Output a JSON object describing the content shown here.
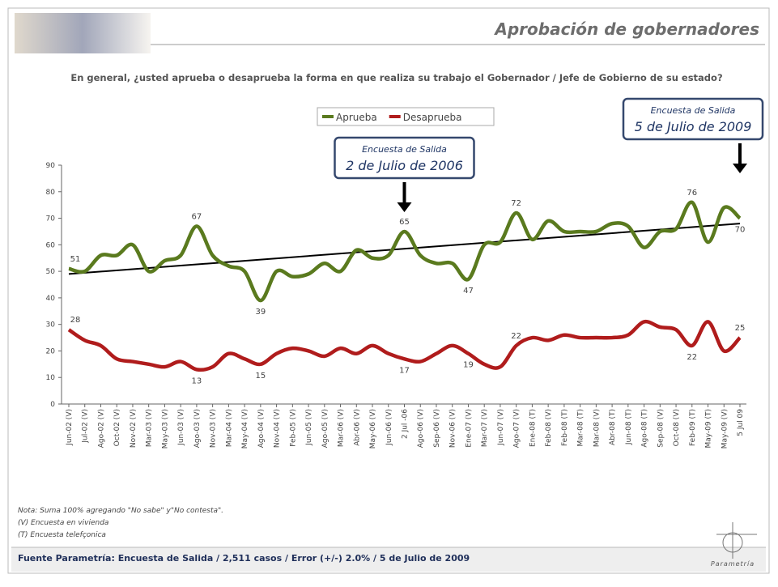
{
  "header": {
    "title": "Aprobación de gobernadores"
  },
  "chart_data": {
    "type": "line",
    "subtitle": "En general, ¿usted aprueba o desaprueba la forma en que realiza su trabajo el Gobernador / Jefe de Gobierno de su estado?",
    "categories": [
      "Jun-02 (V)",
      "Jul-02 (V)",
      "Ago-02 (V)",
      "Oct-02 (V)",
      "Nov-02 (V)",
      "Mar-03 (V)",
      "May-03 (V)",
      "Jun-03 (V)",
      "Ago-03 (V)",
      "Nov-03 (V)",
      "Mar-04 (V)",
      "May-04 (V)",
      "Ago-04 (V)",
      "Nov-04 (V)",
      "Feb-05 (V)",
      "Jun-05 (V)",
      "Ago-05 (V)",
      "Mar-06 (V)",
      "Abr-06 (V)",
      "May-06 (V)",
      "Jun-06 (V)",
      "2 Jul -06",
      "Ago-06 (V)",
      "Sep-06 (V)",
      "Nov-06 (V)",
      "Ene-07 (V)",
      "Mar-07 (V)",
      "Jun-07 (V)",
      "Ago-07 (V)",
      "Ene-08 (T)",
      "Feb-08 (V)",
      "Feb-08 (T)",
      "Mar-08 (T)",
      "Mar-08 (V)",
      "Abr-08 (T)",
      "Jun-08 (T)",
      "Ago-08 (T)",
      "Sep-08 (V)",
      "Oct-08 (V)",
      "Feb-09 (T)",
      "May-09 (T)",
      "May-09 (V)",
      "5 Jul 09"
    ],
    "series": [
      {
        "name": "Aprueba",
        "color": "#5a7a1e",
        "values": [
          51,
          50,
          56,
          56,
          60,
          50,
          54,
          56,
          67,
          56,
          52,
          50,
          39,
          50,
          48,
          49,
          53,
          50,
          58,
          55,
          56,
          65,
          56,
          53,
          53,
          47,
          60,
          61,
          72,
          62,
          69,
          65,
          65,
          65,
          68,
          67,
          59,
          65,
          66,
          76,
          61,
          74,
          70
        ],
        "value_labels": [
          "51",
          null,
          null,
          null,
          null,
          null,
          null,
          null,
          "67",
          null,
          null,
          null,
          "39",
          null,
          null,
          null,
          null,
          null,
          null,
          null,
          null,
          "65",
          null,
          null,
          null,
          "47",
          null,
          null,
          "72",
          null,
          null,
          null,
          null,
          null,
          null,
          null,
          null,
          null,
          null,
          "76",
          null,
          null,
          "70"
        ]
      },
      {
        "name": "Desaprueba",
        "color": "#b01c1c",
        "values": [
          28,
          24,
          22,
          17,
          16,
          15,
          14,
          16,
          13,
          14,
          19,
          17,
          15,
          19,
          21,
          20,
          18,
          21,
          19,
          22,
          19,
          17,
          16,
          19,
          22,
          19,
          15,
          14,
          22,
          25,
          24,
          26,
          25,
          25,
          25,
          26,
          31,
          29,
          28,
          22,
          31,
          20,
          25
        ],
        "value_labels": [
          "28",
          null,
          null,
          null,
          null,
          null,
          null,
          null,
          "13",
          null,
          null,
          null,
          "15",
          null,
          null,
          null,
          null,
          null,
          null,
          null,
          null,
          "17",
          null,
          null,
          null,
          "19",
          null,
          null,
          "22",
          null,
          null,
          null,
          null,
          null,
          null,
          null,
          null,
          null,
          null,
          "22",
          null,
          null,
          "25"
        ]
      }
    ],
    "trend": {
      "values": [
        49,
        68
      ],
      "color": "#000000"
    },
    "ylim": [
      0,
      90
    ],
    "yticks": [
      0,
      10,
      20,
      30,
      40,
      50,
      60,
      70,
      80,
      90
    ],
    "legend": "top",
    "annotations": [
      {
        "index": 21,
        "lines": [
          "Encuesta de Salida",
          "2 de Julio de 2006"
        ]
      },
      {
        "index": 42,
        "lines": [
          "Encuesta de Salida",
          "5 de Julio de 2009"
        ]
      }
    ]
  },
  "notes": [
    "Nota: Suma 100%  agregando \"No sabe\" y\"No contesta\".",
    "(V) Encuesta en vivienda",
    "(T) Encuesta telefçonica"
  ],
  "footer": {
    "source": "Fuente Parametría: Encuesta de Salida / 2,511 casos / Error (+/-) 2.0% / 5 de Julio de 2009",
    "logo": "Parametría"
  }
}
